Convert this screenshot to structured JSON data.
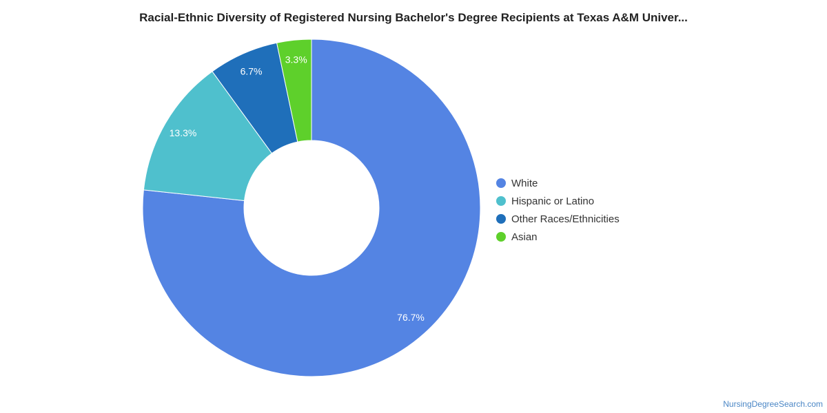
{
  "chart_data": {
    "type": "pie",
    "donut": true,
    "title": "Racial-Ethnic Diversity of Registered Nursing Bachelor's Degree Recipients at Texas A&M Univer...",
    "categories": [
      "White",
      "Hispanic or Latino",
      "Other Races/Ethnicities",
      "Asian"
    ],
    "values": [
      76.7,
      13.3,
      6.7,
      3.3
    ],
    "labels": [
      "76.7%",
      "13.3%",
      "6.7%",
      "3.3%"
    ],
    "colors": [
      "#5484e3",
      "#4fc0cd",
      "#1f6fba",
      "#5ed02b"
    ],
    "legend_position": "right"
  },
  "credit": "NursingDegreeSearch.com"
}
